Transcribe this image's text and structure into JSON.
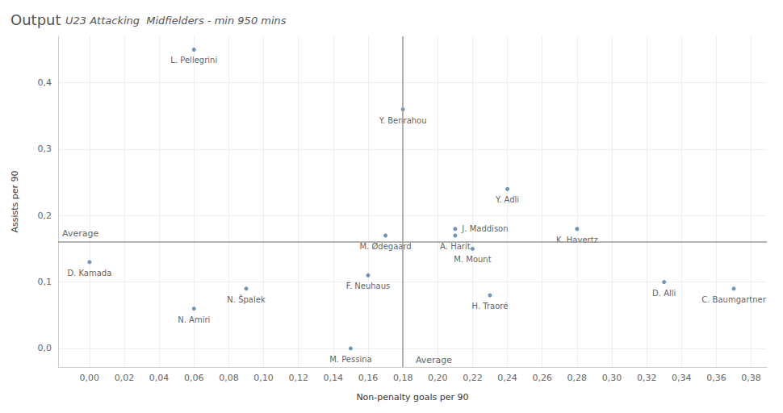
{
  "chart_data": {
    "type": "scatter",
    "title": "Output",
    "subtitle": "U23 Attacking  Midfielders - min 950 mins",
    "x_label": "Non-penalty goals per 90",
    "y_label": "Assists per 90",
    "labels": [
      "L. Pellegrini",
      "Y. Benrahou",
      "Y. Adli",
      "J. Maddison",
      "A. Harit",
      "M. Ødegaard",
      "M. Mount",
      "K. Havertz",
      "D. Kamada",
      "F. Neuhaus",
      "N. Špalek",
      "N. Amiri",
      "M. Pessina",
      "H. Traoré",
      "D. Alli",
      "C. Baumgartner"
    ],
    "x": [
      0.06,
      0.18,
      0.24,
      0.21,
      0.21,
      0.17,
      0.22,
      0.28,
      0.0,
      0.16,
      0.09,
      0.06,
      0.15,
      0.23,
      0.33,
      0.37
    ],
    "values": [
      0.45,
      0.36,
      0.24,
      0.18,
      0.17,
      0.17,
      0.15,
      0.18,
      0.13,
      0.11,
      0.09,
      0.06,
      0.0,
      0.08,
      0.1,
      0.09
    ],
    "color": "#4e79a7",
    "xlim": [
      -0.018,
      0.389
    ],
    "ylim": [
      -0.028,
      0.47
    ],
    "xticks": [
      {
        "value": 0.0,
        "label": "0,00"
      },
      {
        "value": 0.02,
        "label": "0,02"
      },
      {
        "value": 0.04,
        "label": "0,04"
      },
      {
        "value": 0.06,
        "label": "0,06"
      },
      {
        "value": 0.08,
        "label": "0,08"
      },
      {
        "value": 0.1,
        "label": "0,10"
      },
      {
        "value": 0.12,
        "label": "0,12"
      },
      {
        "value": 0.14,
        "label": "0,14"
      },
      {
        "value": 0.16,
        "label": "0,16"
      },
      {
        "value": 0.18,
        "label": "0,18"
      },
      {
        "value": 0.2,
        "label": "0,20"
      },
      {
        "value": 0.22,
        "label": "0,22"
      },
      {
        "value": 0.24,
        "label": "0,24"
      },
      {
        "value": 0.26,
        "label": "0,26"
      },
      {
        "value": 0.28,
        "label": "0,28"
      },
      {
        "value": 0.3,
        "label": "0,30"
      },
      {
        "value": 0.32,
        "label": "0,32"
      },
      {
        "value": 0.34,
        "label": "0,34"
      },
      {
        "value": 0.36,
        "label": "0,36"
      },
      {
        "value": 0.38,
        "label": "0,38"
      }
    ],
    "yticks": [
      {
        "value": 0.0,
        "label": "0,0"
      },
      {
        "value": 0.1,
        "label": "0,1"
      },
      {
        "value": 0.2,
        "label": "0,2"
      },
      {
        "value": 0.3,
        "label": "0,3"
      },
      {
        "value": 0.4,
        "label": "0,4"
      }
    ],
    "reference_lines": [
      {
        "axis": "x",
        "value": 0.185,
        "label": "Average"
      },
      {
        "axis": "y",
        "value": 0.16,
        "label": "Average"
      }
    ],
    "grid": true,
    "data_labels": true,
    "tick_labels": true
  }
}
